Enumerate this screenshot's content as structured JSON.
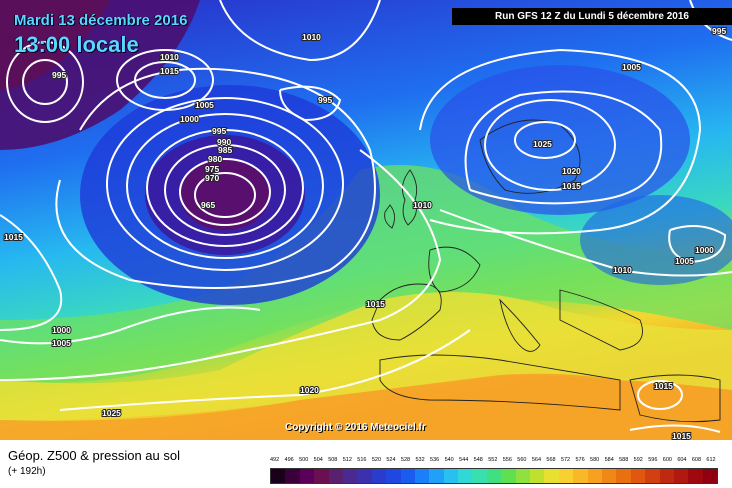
{
  "header": {
    "date": "Mardi 13 décembre 2016",
    "time": "13:00 locale",
    "run": "Run GFS 12 Z du Lundi 5 décembre 2016"
  },
  "copyright": "Copyright © 2016 Meteociel.fr",
  "footer": {
    "title": "Géop. Z500 & pression au sol",
    "subtitle": "(+ 192h)"
  },
  "isobar_labels": [
    "995",
    "1010",
    "1015",
    "1005",
    "1000",
    "995",
    "990",
    "985",
    "980",
    "975",
    "970",
    "965",
    "1010",
    "995",
    "1005",
    "1025",
    "1020",
    "1015",
    "1010",
    "1000",
    "1005",
    "1010",
    "1015",
    "1000",
    "1005",
    "1015",
    "1020",
    "1025",
    "1015",
    "1015",
    "995"
  ],
  "scale": {
    "ticks": [
      "492",
      "496",
      "500",
      "504",
      "508",
      "512",
      "516",
      "520",
      "524",
      "528",
      "532",
      "536",
      "540",
      "544",
      "548",
      "552",
      "556",
      "560",
      "564",
      "568",
      "572",
      "576",
      "580",
      "584",
      "588",
      "592",
      "596",
      "600",
      "604",
      "608",
      "612"
    ],
    "colors": [
      "#1a001a",
      "#3a003a",
      "#5a005a",
      "#6a1050",
      "#5a2070",
      "#4a2a90",
      "#3a30b0",
      "#2a3ccc",
      "#2048e0",
      "#1a5cf0",
      "#1a80f8",
      "#20a0f8",
      "#28c0f0",
      "#30d8d8",
      "#38e0b0",
      "#40e080",
      "#60e050",
      "#90e040",
      "#c0e030",
      "#e8e030",
      "#f8d030",
      "#f8b828",
      "#f8a020",
      "#f08818",
      "#e87010",
      "#e05810",
      "#d04010",
      "#c02810",
      "#b01810",
      "#a00810",
      "#900010"
    ]
  }
}
